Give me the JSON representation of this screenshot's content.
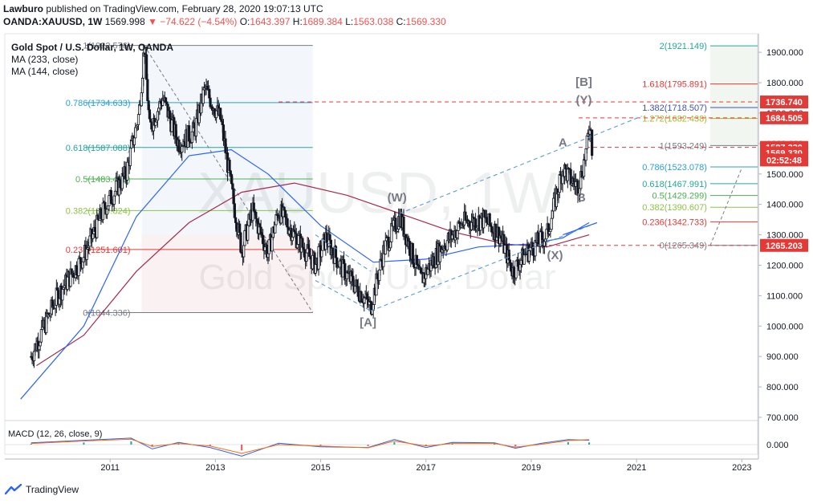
{
  "header": {
    "author": "Lawburo",
    "published": "published on TradingView.com, February 28, 2020 19:07:13 UTC",
    "symbol": "OANDA:XAUUSD, 1W",
    "price": "1569.998",
    "change": "▼ −74.622 (−4.54%)",
    "o_label": "O:",
    "o_value": "1643.397",
    "h_label": "H:",
    "h_value": "1689.384",
    "l_label": "L:",
    "l_value": "1563.038",
    "c_label": "C:",
    "c_value": "1569.330"
  },
  "legend": {
    "title": "Gold Spot / U.S. Dollar, 1W, OANDA",
    "ma1": "MA (233, close)",
    "ma2": "MA (144, close)",
    "macd": "MACD (12, 26, close, 9)"
  },
  "watermark": {
    "symbol": "XAUUSD, 1W",
    "name": "Gold Spot / U.S. Dollar"
  },
  "footer": {
    "brand": "TradingView"
  },
  "colors": {
    "candle": "#131722",
    "ma233": "#a52a4a",
    "ma144": "#2962ff",
    "fib_dash": "#787b86",
    "red_dash": "#e53935",
    "wave": "#5b9bd5"
  },
  "chart_data": {
    "type": "candlestick",
    "title": "Gold Spot / U.S. Dollar, 1W, OANDA",
    "x_ticks": [
      "2011",
      "2013",
      "2015",
      "2017",
      "2019",
      "2021",
      "2023"
    ],
    "y_ticks": [
      "1900.000",
      "1800.000",
      "1700.000",
      "1600.000",
      "1500.000",
      "1400.000",
      "1300.000",
      "1200.000",
      "1100.000",
      "1000.000",
      "900.000",
      "800.000",
      "700.000"
    ],
    "ylim": [
      700,
      1940
    ],
    "price_path": [
      [
        2009.5,
        900
      ],
      [
        2010.0,
        1100
      ],
      [
        2010.5,
        1230
      ],
      [
        2010.9,
        1390
      ],
      [
        2011.3,
        1500
      ],
      [
        2011.55,
        1700
      ],
      [
        2011.65,
        1920
      ],
      [
        2011.75,
        1650
      ],
      [
        2012.0,
        1750
      ],
      [
        2012.3,
        1600
      ],
      [
        2012.6,
        1640
      ],
      [
        2012.8,
        1780
      ],
      [
        2013.1,
        1680
      ],
      [
        2013.35,
        1400
      ],
      [
        2013.5,
        1250
      ],
      [
        2013.7,
        1380
      ],
      [
        2014.0,
        1240
      ],
      [
        2014.2,
        1380
      ],
      [
        2014.5,
        1300
      ],
      [
        2014.9,
        1200
      ],
      [
        2015.1,
        1290
      ],
      [
        2015.4,
        1190
      ],
      [
        2015.8,
        1100
      ],
      [
        2015.95,
        1060
      ],
      [
        2016.2,
        1250
      ],
      [
        2016.5,
        1360
      ],
      [
        2016.9,
        1150
      ],
      [
        2017.3,
        1260
      ],
      [
        2017.7,
        1340
      ],
      [
        2018.1,
        1350
      ],
      [
        2018.4,
        1300
      ],
      [
        2018.65,
        1180
      ],
      [
        2018.9,
        1240
      ],
      [
        2019.3,
        1300
      ],
      [
        2019.6,
        1520
      ],
      [
        2019.75,
        1480
      ],
      [
        2019.9,
        1460
      ],
      [
        2020.05,
        1580
      ],
      [
        2020.12,
        1680
      ],
      [
        2020.16,
        1570
      ]
    ],
    "ma233": [
      [
        2009.6,
        870
      ],
      [
        2010.5,
        970
      ],
      [
        2011.5,
        1180
      ],
      [
        2012.5,
        1340
      ],
      [
        2013.5,
        1440
      ],
      [
        2014.5,
        1470
      ],
      [
        2015.5,
        1430
      ],
      [
        2016.5,
        1370
      ],
      [
        2017.5,
        1310
      ],
      [
        2018.5,
        1270
      ],
      [
        2019.3,
        1260
      ],
      [
        2020.1,
        1300
      ]
    ],
    "ma144": [
      [
        2009.3,
        760
      ],
      [
        2010.5,
        1000
      ],
      [
        2011.5,
        1360
      ],
      [
        2012.5,
        1560
      ],
      [
        2013.3,
        1580
      ],
      [
        2014.0,
        1500
      ],
      [
        2015.0,
        1330
      ],
      [
        2016.0,
        1210
      ],
      [
        2017.0,
        1220
      ],
      [
        2018.0,
        1260
      ],
      [
        2019.0,
        1270
      ],
      [
        2019.6,
        1290
      ],
      [
        2020.1,
        1340
      ]
    ],
    "macd": {
      "label": "MACD (12, 26, close, 9)",
      "y_tick": "0.000",
      "macd_line": [
        [
          2009.5,
          5
        ],
        [
          2010.5,
          12
        ],
        [
          2011.4,
          18
        ],
        [
          2011.8,
          -12
        ],
        [
          2012.3,
          6
        ],
        [
          2012.9,
          -8
        ],
        [
          2013.5,
          -32
        ],
        [
          2014.2,
          4
        ],
        [
          2015.0,
          -6
        ],
        [
          2015.9,
          -8
        ],
        [
          2016.4,
          14
        ],
        [
          2017.0,
          -8
        ],
        [
          2017.5,
          6
        ],
        [
          2018.3,
          5
        ],
        [
          2018.7,
          -10
        ],
        [
          2019.2,
          4
        ],
        [
          2019.7,
          14
        ],
        [
          2020.1,
          12
        ]
      ],
      "signal_line": [
        [
          2009.5,
          3
        ],
        [
          2010.5,
          10
        ],
        [
          2011.4,
          15
        ],
        [
          2011.8,
          -5
        ],
        [
          2012.3,
          3
        ],
        [
          2012.9,
          -4
        ],
        [
          2013.5,
          -24
        ],
        [
          2014.2,
          0
        ],
        [
          2015.0,
          -4
        ],
        [
          2015.9,
          -9
        ],
        [
          2016.4,
          10
        ],
        [
          2017.0,
          -4
        ],
        [
          2017.5,
          3
        ],
        [
          2018.3,
          3
        ],
        [
          2018.7,
          -7
        ],
        [
          2019.2,
          1
        ],
        [
          2019.7,
          11
        ],
        [
          2020.1,
          14
        ]
      ]
    },
    "fib_left": {
      "levels": [
        {
          "label": "1(1922.576)",
          "value": 1922.576,
          "color": "#787b86"
        },
        {
          "label": "0.786(1734.633)",
          "value": 1734.633,
          "color": "#2a9fd6"
        },
        {
          "label": "0.618(1587.088)",
          "value": 1587.088,
          "color": "#26a69a"
        },
        {
          "label": "0.5(1483.456)",
          "value": 1483.456,
          "color": "#4caf50"
        },
        {
          "label": "0.382(1379.824)",
          "value": 1379.824,
          "color": "#8bc34a"
        },
        {
          "label": "0.236(1251.601)",
          "value": 1251.601,
          "color": "#e53935"
        },
        {
          "label": "0(1044.336)",
          "value": 1044.336,
          "color": "#787b86"
        }
      ]
    },
    "fib_right": {
      "levels": [
        {
          "label": "2(1921.149)",
          "value": 1921.149,
          "color": "#26a69a"
        },
        {
          "label": "1.618(1795.891)",
          "value": 1795.891,
          "color": "#e53935"
        },
        {
          "label": "1.382(1718.507)",
          "value": 1718.507,
          "color": "#3f51b5"
        },
        {
          "label": "1.272(1682.438)",
          "value": 1682.438,
          "color": "#afb42b"
        },
        {
          "label": "1(1593.249)",
          "value": 1593.249,
          "color": "#787b86"
        },
        {
          "label": "0.786(1523.078)",
          "value": 1523.078,
          "color": "#2a9fd6"
        },
        {
          "label": "0.618(1467.991)",
          "value": 1467.991,
          "color": "#26a69a"
        },
        {
          "label": "0.5(1429.299)",
          "value": 1429.299,
          "color": "#4caf50"
        },
        {
          "label": "0.382(1390.607)",
          "value": 1390.607,
          "color": "#8bc34a"
        },
        {
          "label": "0.236(1342.733)",
          "value": 1342.733,
          "color": "#e53935"
        },
        {
          "label": "0(1265.349)",
          "value": 1265.349,
          "color": "#787b86"
        }
      ]
    },
    "wave_labels": [
      {
        "label": "[A]",
        "x": 2015.9,
        "y": 1000
      },
      {
        "label": "(W)",
        "x": 2016.45,
        "y": 1410
      },
      {
        "label": "(X)",
        "x": 2019.45,
        "y": 1220
      },
      {
        "label": "A",
        "x": 2019.6,
        "y": 1590
      },
      {
        "label": "B",
        "x": 2019.95,
        "y": 1410
      },
      {
        "label": "[B]",
        "x": 2020.0,
        "y": 1790
      },
      {
        "label": "(Y)",
        "x": 2020.0,
        "y": 1730
      }
    ],
    "price_tags": [
      {
        "label": "1736.740",
        "value": 1736.74,
        "color": "#e53935"
      },
      {
        "label": "1684.505",
        "value": 1684.505,
        "color": "#e53935"
      },
      {
        "label": "1587.330",
        "value": 1587.33,
        "color": "#e53935"
      },
      {
        "label": "1569.330",
        "value": 1569.33,
        "color": "#e53935"
      },
      {
        "label": "02:52:48",
        "value": 1546,
        "color": "#e53935"
      },
      {
        "label": "1265.203",
        "value": 1265.203,
        "color": "#e53935"
      }
    ]
  }
}
